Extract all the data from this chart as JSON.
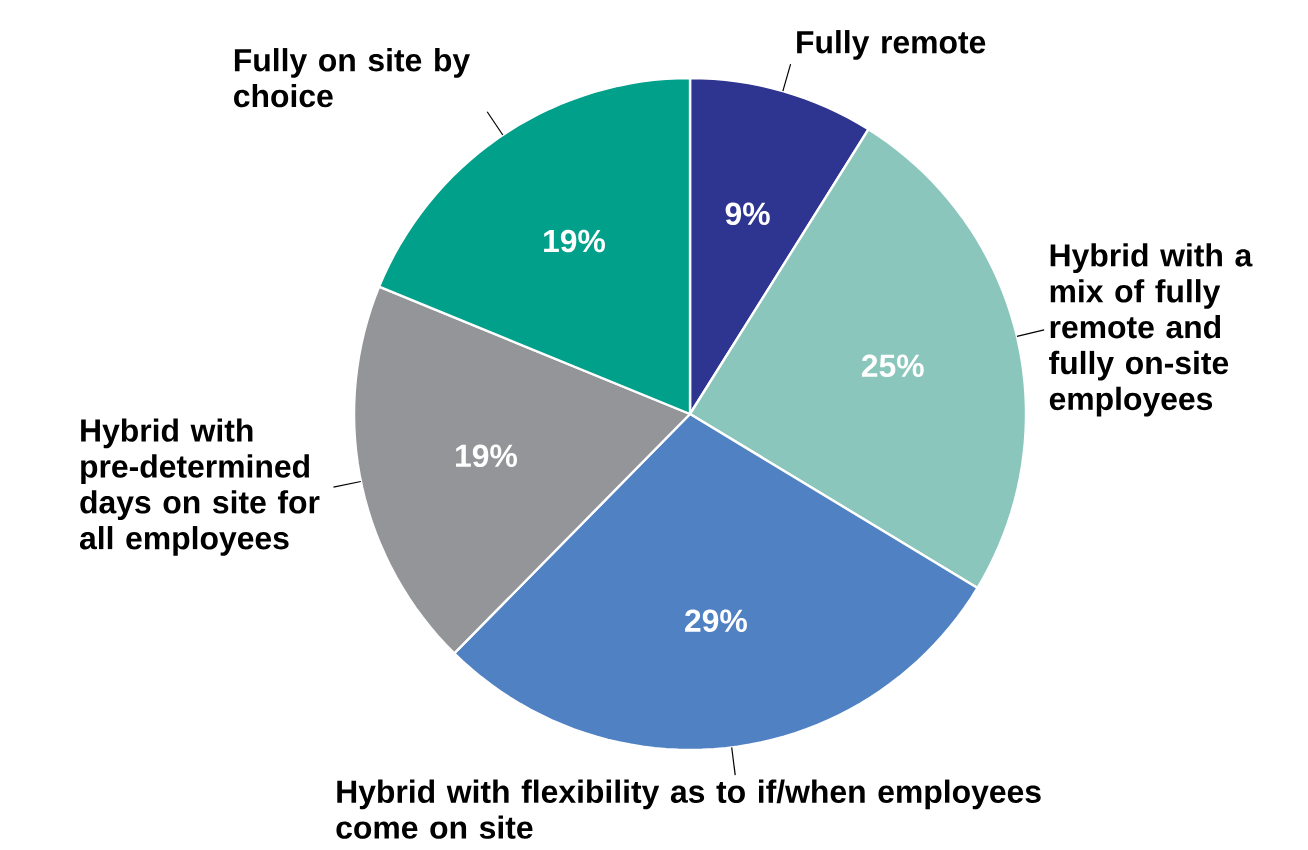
{
  "chart_data": {
    "type": "pie",
    "categories": [
      "Fully remote",
      "Hybrid with a mix of fully remote and fully on-site employees",
      "Hybrid with flexibility as to if/when employees come on site",
      "Hybrid with pre-determined days on site for all employees",
      "Fully on site by choice"
    ],
    "values": [
      9,
      25,
      29,
      19,
      19
    ],
    "value_labels": [
      "9%",
      "25%",
      "29%",
      "19%",
      "19%"
    ],
    "colors": [
      "#2e3590",
      "#8ac6bb",
      "#5081c3",
      "#939598",
      "#00a08a"
    ]
  }
}
